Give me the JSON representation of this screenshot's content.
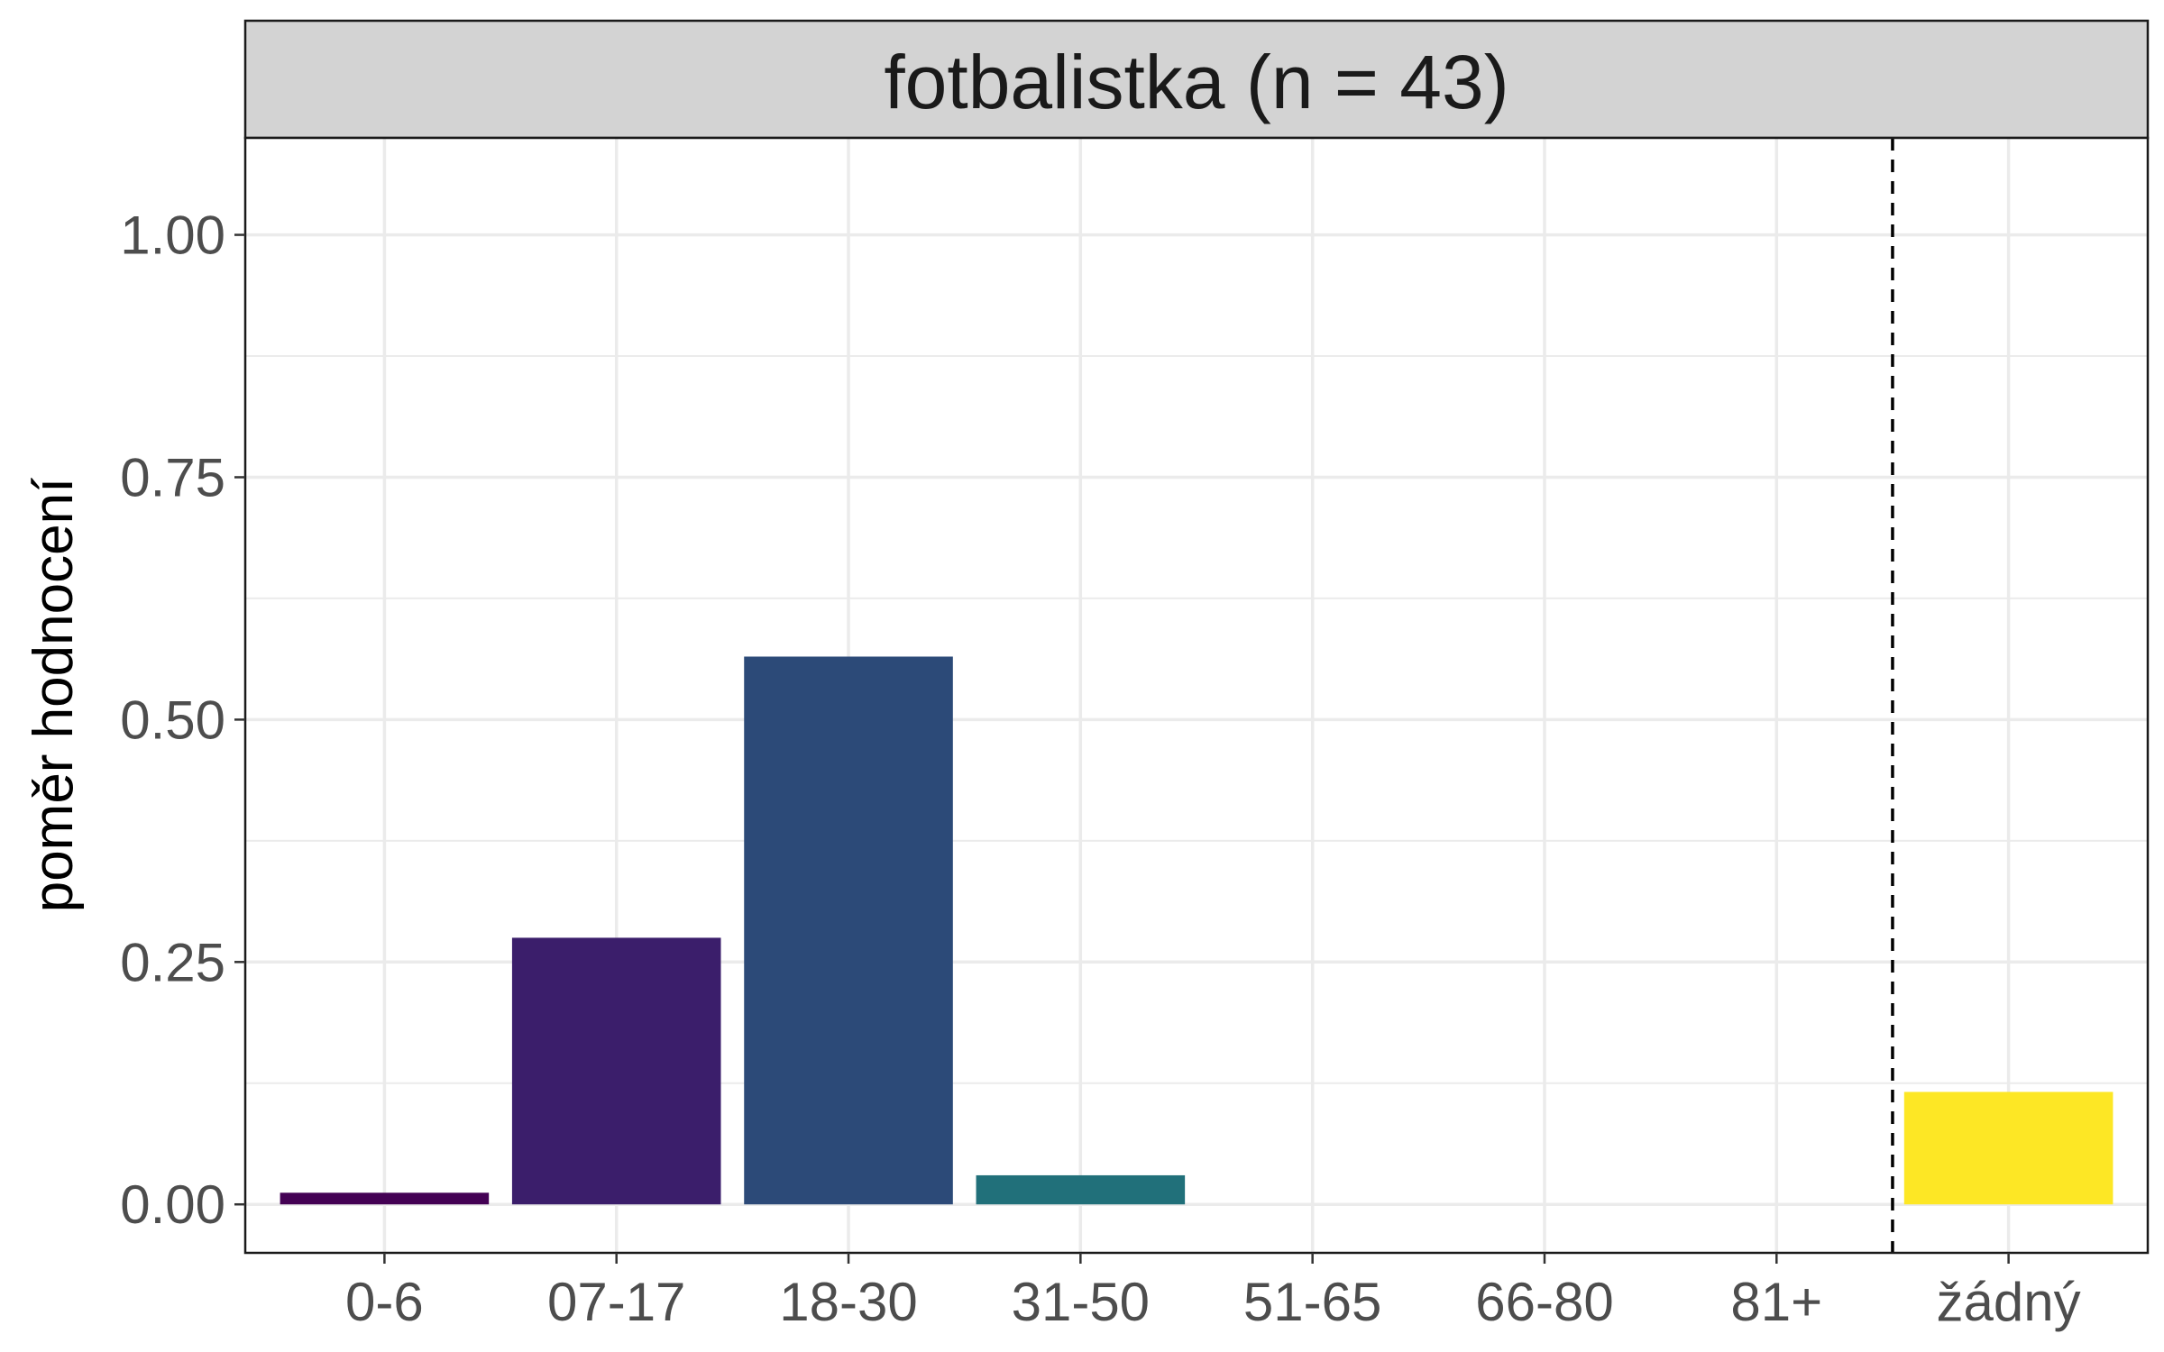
{
  "chart_data": {
    "type": "bar",
    "facet_title": "fotbalistka (n = 43)",
    "ylabel": "poměr hodnocení",
    "xlabel": "",
    "categories": [
      "0-6",
      "07-17",
      "18-30",
      "31-50",
      "51-65",
      "66-80",
      "81+",
      "žádný"
    ],
    "values": [
      0.012,
      0.275,
      0.565,
      0.03,
      0,
      0,
      0,
      0.116
    ],
    "colors": [
      "#440154",
      "#3b1e6b",
      "#2c4a78",
      "#21707a",
      "#22a884",
      "#7ad151",
      "#bddf26",
      "#fde725"
    ],
    "ylim": [
      -0.05,
      1.1
    ],
    "yticks": [
      0,
      0.25,
      0.5,
      0.75,
      1.0
    ],
    "ytick_labels": [
      "0.00",
      "0.25",
      "0.50",
      "0.75",
      "1.00"
    ],
    "reference_line": {
      "between": [
        "81+",
        "žádný"
      ],
      "style": "dashed"
    },
    "grid": true,
    "legend": "none"
  }
}
